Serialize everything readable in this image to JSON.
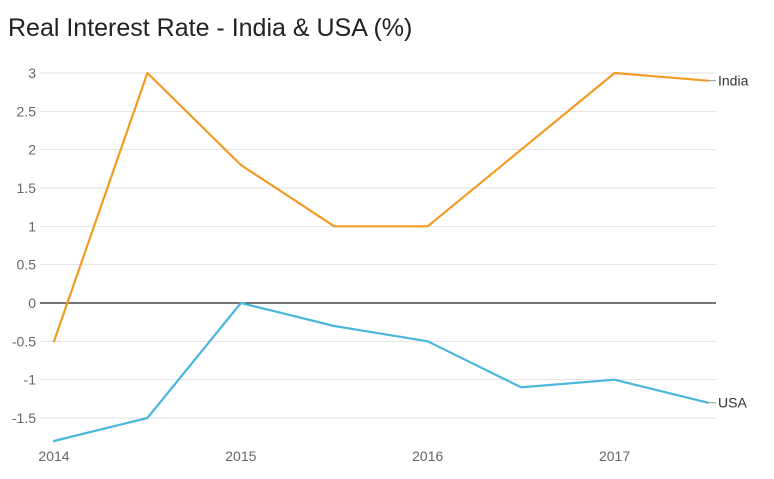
{
  "chart_data": {
    "type": "line",
    "title": "Real Interest Rate - India & USA (%)",
    "xlabel": "",
    "ylabel": "",
    "x": [
      2014.0,
      2014.5,
      2015.0,
      2015.5,
      2016.0,
      2016.5,
      2017.0,
      2017.5
    ],
    "x_ticks": [
      "2014",
      "2015",
      "2016",
      "2017"
    ],
    "ylim": [
      -1.8,
      3.0
    ],
    "y_ticks": [
      "3",
      "2.5",
      "2",
      "1.5",
      "1",
      "0.5",
      "0",
      "-0.5",
      "-1",
      "-1.5"
    ],
    "grid": true,
    "zero_line": true,
    "legend": "end-of-line labels",
    "series": [
      {
        "name": "India",
        "color": "#F39A24",
        "values": [
          -0.5,
          3.0,
          1.8,
          1.0,
          1.0,
          2.0,
          3.0,
          2.9
        ]
      },
      {
        "name": "USA",
        "color": "#4BB6DC",
        "values": [
          -1.8,
          -1.5,
          0.0,
          -0.3,
          -0.5,
          -1.1,
          -1.0,
          -1.3
        ]
      }
    ]
  }
}
